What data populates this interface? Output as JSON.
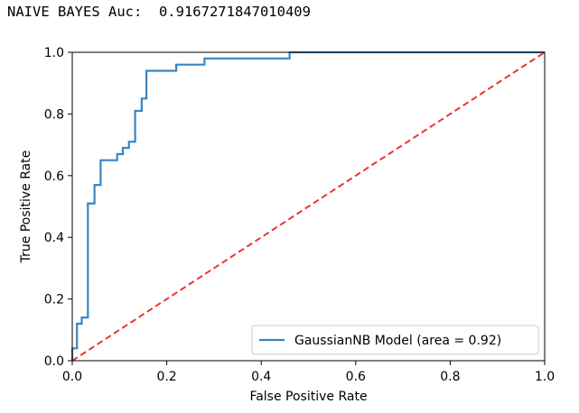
{
  "output_line": "NAIVE BAYES Auc:  0.9167271847010409",
  "colors": {
    "roc_line": "#3b84c0",
    "diagonal": "#ee3333",
    "axes": "#000000",
    "legend_border": "#cccccc",
    "background": "#ffffff"
  },
  "chart_data": {
    "type": "line",
    "title": "",
    "xlabel": "False Positive Rate",
    "ylabel": "True Positive Rate",
    "xlim": [
      0.0,
      1.0
    ],
    "ylim": [
      0.0,
      1.0
    ],
    "grid": false,
    "legend_position": "lower-right",
    "xticks": [
      "0.0",
      "0.2",
      "0.4",
      "0.6",
      "0.8",
      "1.0"
    ],
    "yticks": [
      "0.0",
      "0.2",
      "0.4",
      "0.6",
      "0.8",
      "1.0"
    ],
    "series": [
      {
        "name": "GaussianNB Model  (area = 0.92)",
        "style": "solid",
        "x": [
          0.0,
          0.0,
          0.01,
          0.01,
          0.02,
          0.02,
          0.033,
          0.033,
          0.047,
          0.047,
          0.06,
          0.06,
          0.095,
          0.095,
          0.107,
          0.107,
          0.12,
          0.12,
          0.133,
          0.133,
          0.147,
          0.147,
          0.157,
          0.157,
          0.167,
          0.167,
          0.22,
          0.22,
          0.28,
          0.28,
          0.46,
          0.46,
          1.0
        ],
        "y": [
          0.0,
          0.04,
          0.04,
          0.12,
          0.12,
          0.14,
          0.14,
          0.51,
          0.51,
          0.57,
          0.57,
          0.65,
          0.65,
          0.67,
          0.67,
          0.69,
          0.69,
          0.71,
          0.71,
          0.81,
          0.81,
          0.85,
          0.85,
          0.94,
          0.94,
          0.94,
          0.94,
          0.96,
          0.96,
          0.98,
          0.98,
          1.0,
          1.0
        ]
      },
      {
        "name": "",
        "style": "dashed",
        "x": [
          0.0,
          1.0
        ],
        "y": [
          0.0,
          1.0
        ]
      }
    ]
  }
}
